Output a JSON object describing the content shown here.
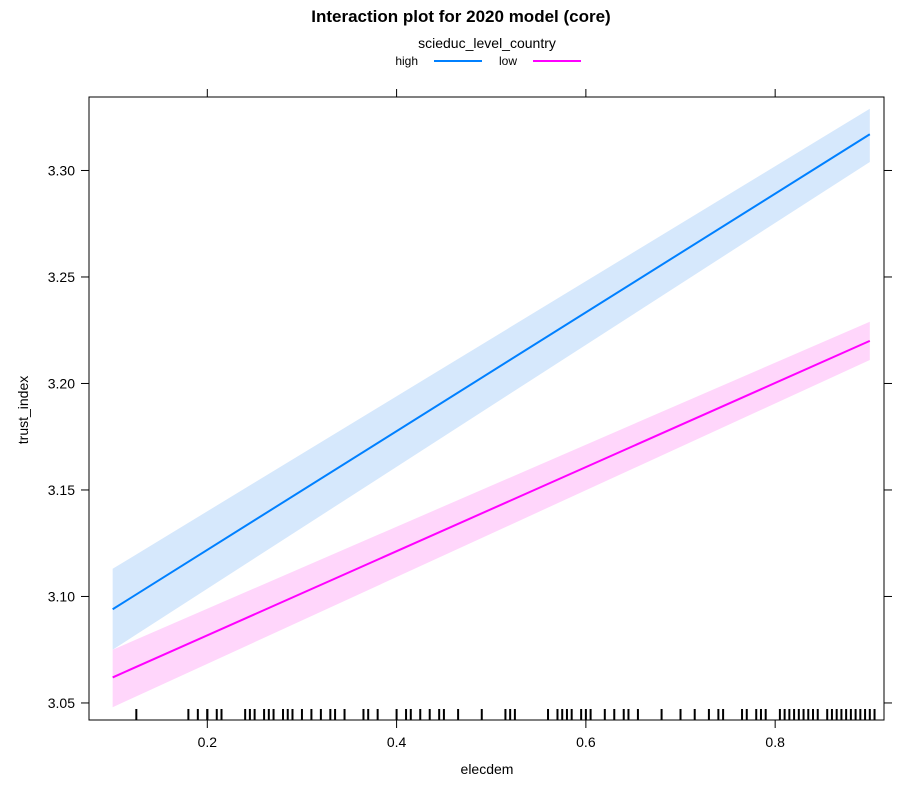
{
  "chart_data": {
    "type": "line",
    "title": "Interaction plot for 2020 model (core)",
    "xlabel": "elecdem",
    "ylabel": "trust_index",
    "xlim": [
      0.075,
      0.915
    ],
    "ylim": [
      3.042,
      3.3345
    ],
    "x_ticks": [
      0.2,
      0.4,
      0.6,
      0.8
    ],
    "x_tick_labels": [
      "0.2",
      "0.4",
      "0.6",
      "0.8"
    ],
    "y_ticks": [
      3.05,
      3.1,
      3.15,
      3.2,
      3.25,
      3.3
    ],
    "y_tick_labels": [
      "3.05",
      "3.10",
      "3.15",
      "3.20",
      "3.25",
      "3.30"
    ],
    "legend": {
      "title": "scieduc_level_country",
      "placement": "top"
    },
    "series": [
      {
        "name": "high",
        "color": "#0080ff",
        "band_color": "#d6e8fc",
        "x": [
          0.1,
          0.9
        ],
        "y": [
          3.094,
          3.317
        ],
        "lower": [
          3.075,
          3.304
        ],
        "upper": [
          3.113,
          3.329
        ]
      },
      {
        "name": "low",
        "color": "#ff00ff",
        "band_color": "#ffd6fb",
        "x": [
          0.1,
          0.9
        ],
        "y": [
          3.062,
          3.22
        ],
        "lower": [
          3.048,
          3.211
        ],
        "upper": [
          3.075,
          3.229
        ]
      }
    ],
    "rug": [
      0.125,
      0.18,
      0.19,
      0.2,
      0.2,
      0.21,
      0.215,
      0.24,
      0.245,
      0.25,
      0.26,
      0.265,
      0.27,
      0.28,
      0.285,
      0.29,
      0.3,
      0.31,
      0.32,
      0.33,
      0.335,
      0.345,
      0.365,
      0.37,
      0.38,
      0.4,
      0.41,
      0.415,
      0.425,
      0.435,
      0.445,
      0.45,
      0.465,
      0.49,
      0.515,
      0.52,
      0.525,
      0.56,
      0.57,
      0.575,
      0.58,
      0.585,
      0.595,
      0.6,
      0.605,
      0.62,
      0.63,
      0.64,
      0.645,
      0.655,
      0.68,
      0.7,
      0.715,
      0.73,
      0.74,
      0.745,
      0.765,
      0.77,
      0.78,
      0.785,
      0.79,
      0.805,
      0.81,
      0.815,
      0.82,
      0.825,
      0.83,
      0.835,
      0.84,
      0.845,
      0.855,
      0.86,
      0.865,
      0.87,
      0.875,
      0.88,
      0.885,
      0.89,
      0.895,
      0.9,
      0.905
    ]
  }
}
